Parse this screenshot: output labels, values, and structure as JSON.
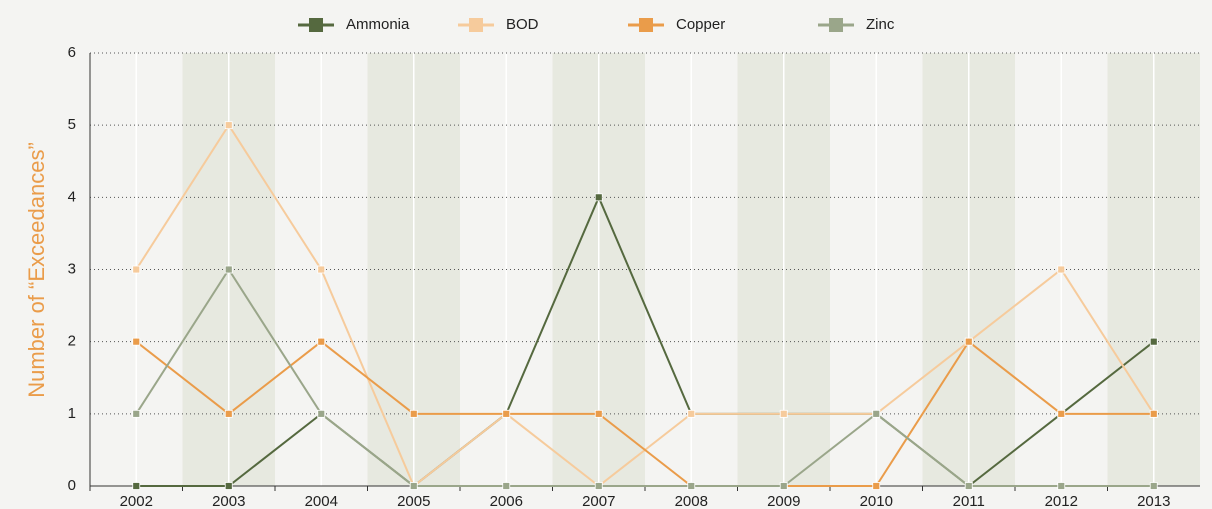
{
  "chart_data": {
    "type": "line",
    "y_label": "Number of “Exceedances”",
    "categories": [
      "2002",
      "2003",
      "2004",
      "2005",
      "2006",
      "2007",
      "2008",
      "2009",
      "2010",
      "2011",
      "2012",
      "2013"
    ],
    "series": [
      {
        "name": "Ammonia",
        "color": "#55693f",
        "values": [
          0,
          0,
          1,
          0,
          1,
          4,
          1,
          1,
          1,
          0,
          1,
          2
        ]
      },
      {
        "name": "BOD",
        "color": "#f6cb9c",
        "values": [
          3,
          5,
          3,
          0,
          1,
          0,
          1,
          1,
          1,
          2,
          3,
          1
        ]
      },
      {
        "name": "Copper",
        "color": "#ea9c4a",
        "values": [
          2,
          1,
          2,
          1,
          1,
          1,
          0,
          0,
          0,
          2,
          1,
          1
        ]
      },
      {
        "name": "Zinc",
        "color": "#9aa68a",
        "values": [
          1,
          3,
          1,
          0,
          0,
          0,
          0,
          0,
          1,
          0,
          0,
          0
        ]
      }
    ],
    "ylim": [
      0,
      6
    ],
    "yticks": [
      0,
      1,
      2,
      3,
      4,
      5,
      6
    ],
    "grid": true,
    "legend": "top"
  }
}
